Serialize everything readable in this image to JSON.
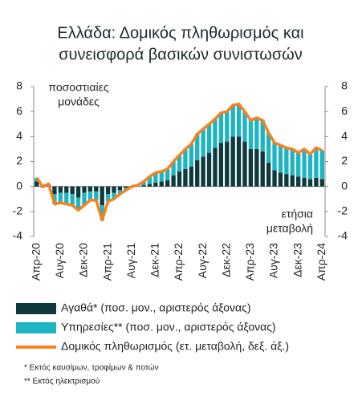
{
  "chart_data": {
    "type": "bar",
    "title": [
      "Ελλάδα: Δομικός πληθωρισμός και",
      "συνεισφορά βασικών συνιστωσών"
    ],
    "annotation_left": [
      "ποσοστιαίες",
      "μονάδες"
    ],
    "annotation_right": [
      "ετήσια",
      "μεταβολή"
    ],
    "stacked": true,
    "categories": [
      "Απρ-20",
      null,
      null,
      null,
      "Αυγ-20",
      null,
      null,
      null,
      "Δεκ-20",
      null,
      null,
      null,
      "Απρ-21",
      null,
      null,
      null,
      "Αυγ-21",
      null,
      null,
      null,
      "Δεκ-21",
      null,
      null,
      null,
      "Απρ-22",
      null,
      null,
      null,
      "Αυγ-22",
      null,
      null,
      null,
      "Δεκ-22",
      null,
      null,
      null,
      "Απρ-23",
      null,
      null,
      null,
      "Αυγ-23",
      null,
      null,
      null,
      "Δεκ-23",
      null,
      null,
      null,
      "Απρ-24"
    ],
    "series": [
      {
        "name": "Αγαθά* (ποσ. μον., αριστερός άξονας)",
        "color": "#0e3a3e",
        "type": "bar",
        "values": [
          0.4,
          0.1,
          0.2,
          -0.6,
          -0.5,
          -0.5,
          -0.6,
          -0.9,
          -0.5,
          -0.4,
          -0.4,
          -1.5,
          -0.6,
          -0.5,
          -0.3,
          -0.1,
          0.0,
          0.0,
          0.1,
          0.2,
          0.3,
          0.4,
          0.5,
          0.9,
          1.2,
          1.4,
          1.6,
          2.1,
          2.4,
          2.7,
          3.1,
          3.5,
          3.6,
          4.0,
          4.0,
          3.6,
          3.0,
          3.0,
          2.8,
          1.9,
          1.3,
          1.1,
          1.0,
          0.9,
          0.8,
          0.7,
          0.6,
          0.7,
          0.6
        ]
      },
      {
        "name": "Υπηρεσίες** (ποσ. μον., αριστερός άξονας)",
        "color": "#1fb4c3",
        "type": "bar",
        "values": [
          0.3,
          -0.1,
          0.0,
          -0.8,
          -0.8,
          -0.9,
          -0.9,
          -1.0,
          -1.0,
          -0.7,
          -0.7,
          -1.2,
          -0.6,
          -0.5,
          -0.3,
          -0.2,
          0.0,
          0.1,
          0.3,
          0.6,
          0.8,
          0.8,
          0.9,
          1.1,
          1.3,
          1.6,
          1.8,
          2.1,
          2.2,
          2.3,
          2.3,
          2.4,
          2.4,
          2.5,
          2.6,
          2.4,
          2.3,
          2.5,
          2.5,
          2.4,
          2.2,
          2.2,
          2.1,
          2.1,
          1.9,
          2.3,
          2.0,
          2.4,
          2.3
        ]
      },
      {
        "name": "Δομικός πληθωρισμός (ετ. μεταβολή, δεξ. άξ.)",
        "color": "#f58220",
        "type": "line",
        "axis": "y2",
        "values": [
          0.7,
          0.0,
          0.2,
          -1.4,
          -1.3,
          -1.4,
          -1.5,
          -1.9,
          -1.5,
          -1.1,
          -1.1,
          -2.7,
          -1.2,
          -1.0,
          -0.6,
          -0.3,
          0.0,
          0.1,
          0.4,
          0.8,
          1.1,
          1.2,
          1.4,
          2.0,
          2.5,
          3.0,
          3.4,
          4.2,
          4.6,
          5.0,
          5.4,
          5.9,
          6.0,
          6.5,
          6.6,
          6.0,
          5.3,
          5.5,
          5.3,
          4.3,
          3.5,
          3.3,
          3.1,
          3.0,
          2.7,
          3.0,
          2.6,
          3.1,
          2.9
        ]
      }
    ],
    "ylim": [
      -4,
      8
    ],
    "yticks": [
      -4,
      -2,
      0,
      2,
      4,
      6,
      8
    ],
    "y2lim": [
      -4,
      8
    ],
    "y2ticks": [
      -4,
      -2,
      0,
      2,
      4,
      6,
      8
    ],
    "grid": false,
    "footnotes": [
      "* Εκτός καυσίμων, τροφίμων & ποτών",
      "** Εκτός ηλεκτρισμού"
    ]
  }
}
